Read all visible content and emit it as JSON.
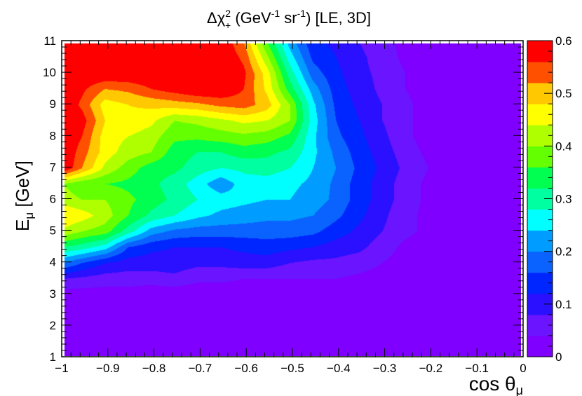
{
  "chart_data": {
    "type": "heatmap",
    "title": {
      "delta": "Δχ",
      "sup": "2",
      "sub": "+",
      "gev": " (GeV",
      "gev_exp": "-1",
      "sr": " sr",
      "sr_exp": "-1",
      "rest": ") [LE, 3D]"
    },
    "xlabel": {
      "main": "cos θ",
      "sub": "μ"
    },
    "ylabel": {
      "main": "E",
      "sub": "μ",
      "unit": " [GeV]"
    },
    "xlim": [
      -1,
      0
    ],
    "ylim": [
      1,
      11
    ],
    "zlim": [
      0,
      0.6
    ],
    "x_ticks": [
      "−1",
      "−0.9",
      "−0.8",
      "−0.7",
      "−0.6",
      "−0.5",
      "−0.4",
      "−0.3",
      "−0.2",
      "−0.1",
      "0"
    ],
    "y_ticks": [
      "1",
      "2",
      "3",
      "4",
      "5",
      "6",
      "7",
      "8",
      "9",
      "10",
      "11"
    ],
    "z_ticks": [
      "0",
      "0.1",
      "0.2",
      "0.3",
      "0.4",
      "0.5",
      "0.6"
    ],
    "contour_levels": 15,
    "palette": [
      "#7f00ff",
      "#6a14ff",
      "#5028ff",
      "#2a10ff",
      "#0026ff",
      "#0a63ff",
      "#009cff",
      "#00c6ff",
      "#00ffff",
      "#00ffa0",
      "#00ff50",
      "#32ff00",
      "#64ff00",
      "#b0ff00",
      "#ffff00",
      "#ffc800",
      "#ff8c00",
      "#ff5000",
      "#ff0000"
    ],
    "x_centers": [
      -0.99,
      -0.95,
      -0.9,
      -0.85,
      -0.8,
      -0.75,
      -0.7,
      -0.65,
      -0.6,
      -0.55,
      -0.5,
      -0.45,
      -0.4,
      -0.35,
      -0.3,
      -0.25,
      -0.2,
      -0.15,
      -0.1,
      -0.05,
      -0.01
    ],
    "y_centers": [
      1,
      2,
      3,
      3.5,
      4,
      4.5,
      5,
      5.5,
      6,
      6.5,
      7,
      7.5,
      8,
      8.5,
      9,
      9.5,
      10,
      10.5,
      11
    ],
    "z": [
      [
        0.0,
        0.0,
        0.0,
        0.0,
        0.0,
        0.0,
        0.0,
        0.0,
        0.0,
        0.0,
        0.0,
        0.0,
        0.0,
        0.0,
        0.0,
        0.0,
        0.0,
        0.0,
        0.0,
        0.0,
        0.0
      ],
      [
        0.0,
        0.0,
        0.0,
        0.0,
        0.0,
        0.0,
        0.0,
        0.0,
        0.0,
        0.0,
        0.0,
        0.0,
        0.0,
        0.0,
        0.0,
        0.0,
        0.0,
        0.0,
        0.0,
        0.0,
        0.0
      ],
      [
        0.02,
        0.02,
        0.02,
        0.02,
        0.01,
        0.01,
        0.01,
        0.01,
        0.01,
        0.01,
        0.01,
        0.01,
        0.01,
        0.0,
        0.0,
        0.0,
        0.0,
        0.0,
        0.0,
        0.0,
        0.0
      ],
      [
        0.08,
        0.07,
        0.06,
        0.06,
        0.06,
        0.07,
        0.05,
        0.05,
        0.04,
        0.04,
        0.04,
        0.04,
        0.04,
        0.03,
        0.02,
        0.01,
        0.01,
        0.0,
        0.0,
        0.0,
        0.0
      ],
      [
        0.2,
        0.16,
        0.12,
        0.1,
        0.1,
        0.1,
        0.09,
        0.09,
        0.1,
        0.1,
        0.08,
        0.07,
        0.07,
        0.06,
        0.04,
        0.02,
        0.01,
        0.0,
        0.0,
        0.0,
        0.0
      ],
      [
        0.32,
        0.3,
        0.26,
        0.16,
        0.13,
        0.12,
        0.12,
        0.12,
        0.13,
        0.14,
        0.13,
        0.12,
        0.1,
        0.09,
        0.06,
        0.03,
        0.02,
        0.01,
        0.0,
        0.0,
        0.0
      ],
      [
        0.43,
        0.4,
        0.38,
        0.3,
        0.22,
        0.19,
        0.18,
        0.18,
        0.18,
        0.18,
        0.18,
        0.17,
        0.14,
        0.11,
        0.08,
        0.05,
        0.03,
        0.01,
        0.0,
        0.0,
        0.0
      ],
      [
        0.48,
        0.46,
        0.42,
        0.36,
        0.31,
        0.28,
        0.25,
        0.23,
        0.22,
        0.21,
        0.21,
        0.2,
        0.17,
        0.13,
        0.09,
        0.05,
        0.03,
        0.01,
        0.0,
        0.0,
        0.0
      ],
      [
        0.42,
        0.4,
        0.4,
        0.37,
        0.34,
        0.31,
        0.28,
        0.26,
        0.25,
        0.24,
        0.24,
        0.22,
        0.19,
        0.14,
        0.1,
        0.06,
        0.03,
        0.01,
        0.0,
        0.0,
        0.0
      ],
      [
        0.4,
        0.37,
        0.36,
        0.35,
        0.33,
        0.3,
        0.26,
        0.21,
        0.26,
        0.26,
        0.25,
        0.23,
        0.19,
        0.14,
        0.1,
        0.06,
        0.03,
        0.01,
        0.0,
        0.0,
        0.0
      ],
      [
        0.6,
        0.52,
        0.43,
        0.38,
        0.34,
        0.33,
        0.3,
        0.28,
        0.29,
        0.3,
        0.28,
        0.24,
        0.2,
        0.15,
        0.11,
        0.07,
        0.04,
        0.01,
        0.0,
        0.0,
        0.0
      ],
      [
        0.6,
        0.54,
        0.46,
        0.42,
        0.4,
        0.34,
        0.32,
        0.32,
        0.34,
        0.33,
        0.31,
        0.25,
        0.19,
        0.14,
        0.1,
        0.06,
        0.03,
        0.01,
        0.0,
        0.0,
        0.0
      ],
      [
        0.6,
        0.56,
        0.46,
        0.44,
        0.42,
        0.37,
        0.37,
        0.38,
        0.39,
        0.38,
        0.35,
        0.25,
        0.17,
        0.13,
        0.09,
        0.05,
        0.02,
        0.01,
        0.0,
        0.0,
        0.0
      ],
      [
        0.6,
        0.58,
        0.48,
        0.47,
        0.45,
        0.4,
        0.41,
        0.43,
        0.45,
        0.44,
        0.4,
        0.26,
        0.16,
        0.12,
        0.08,
        0.05,
        0.02,
        0.01,
        0.0,
        0.0,
        0.0
      ],
      [
        0.6,
        0.55,
        0.46,
        0.48,
        0.49,
        0.5,
        0.51,
        0.53,
        0.54,
        0.5,
        0.4,
        0.25,
        0.15,
        0.11,
        0.08,
        0.05,
        0.02,
        0.01,
        0.0,
        0.0,
        0.0
      ],
      [
        0.6,
        0.57,
        0.52,
        0.53,
        0.56,
        0.58,
        0.6,
        0.6,
        0.56,
        0.47,
        0.34,
        0.22,
        0.14,
        0.1,
        0.07,
        0.04,
        0.02,
        0.01,
        0.0,
        0.0,
        0.0
      ],
      [
        0.6,
        0.6,
        0.6,
        0.6,
        0.6,
        0.6,
        0.6,
        0.6,
        0.57,
        0.46,
        0.3,
        0.18,
        0.13,
        0.09,
        0.07,
        0.04,
        0.02,
        0.0,
        0.0,
        0.0,
        0.0
      ],
      [
        0.6,
        0.6,
        0.6,
        0.6,
        0.6,
        0.6,
        0.6,
        0.6,
        0.55,
        0.41,
        0.26,
        0.15,
        0.12,
        0.09,
        0.06,
        0.03,
        0.01,
        0.0,
        0.0,
        0.0,
        0.0
      ],
      [
        0.6,
        0.6,
        0.6,
        0.6,
        0.6,
        0.6,
        0.6,
        0.6,
        0.52,
        0.36,
        0.22,
        0.13,
        0.11,
        0.08,
        0.05,
        0.03,
        0.01,
        0.0,
        0.0,
        0.0,
        0.0
      ]
    ]
  }
}
